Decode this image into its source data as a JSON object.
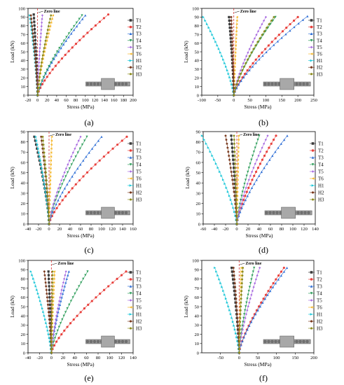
{
  "legend_labels": [
    "T1",
    "T2",
    "T3",
    "T4",
    "T5",
    "T6",
    "H1",
    "H2",
    "H3"
  ],
  "series_colors": [
    "#3a3a3a",
    "#e8403c",
    "#2f6fd6",
    "#2e9e5b",
    "#a86be0",
    "#f5b82e",
    "#1cc7d8",
    "#7a3a1e",
    "#8a8a1a"
  ],
  "zero_line_label": "Zero line",
  "chart_data": [
    {
      "type": "line",
      "caption": "(a)",
      "xlabel": "Stress (MPa)",
      "ylabel": "Load (kN)",
      "xlim": [
        -20,
        200
      ],
      "ylim": [
        0,
        100
      ],
      "xticks": [
        -20,
        0,
        20,
        40,
        60,
        80,
        100,
        120,
        140,
        160,
        180,
        200
      ],
      "yticks": [
        0,
        10,
        20,
        30,
        40,
        50,
        60,
        70,
        80,
        90,
        100
      ],
      "series": [
        {
          "name": "T1",
          "peak_x": -8,
          "peak_y": 93
        },
        {
          "name": "T2",
          "peak_x": 148,
          "peak_y": 93
        },
        {
          "name": "T3",
          "peak_x": 100,
          "peak_y": 92
        },
        {
          "name": "T4",
          "peak_x": 93,
          "peak_y": 92
        },
        {
          "name": "T5",
          "peak_x": 10,
          "peak_y": 92
        },
        {
          "name": "T6",
          "peak_x": 32,
          "peak_y": 92
        },
        {
          "name": "H1",
          "peak_x": -16,
          "peak_y": 92
        },
        {
          "name": "H2",
          "peak_x": -14,
          "peak_y": 92
        },
        {
          "name": "H3",
          "peak_x": 28,
          "peak_y": 92
        }
      ]
    },
    {
      "type": "line",
      "caption": "(b)",
      "xlabel": "Stress (MPa)",
      "ylabel": "Load (kN)",
      "xlim": [
        -100,
        250
      ],
      "ylim": [
        0,
        100
      ],
      "xticks": [
        -100,
        -50,
        0,
        50,
        100,
        150,
        200,
        250
      ],
      "yticks": [
        0,
        10,
        20,
        30,
        40,
        50,
        60,
        70,
        80,
        90,
        100
      ],
      "series": [
        {
          "name": "T1",
          "peak_x": -15,
          "peak_y": 90
        },
        {
          "name": "T2",
          "peak_x": 200,
          "peak_y": 90
        },
        {
          "name": "T3",
          "peak_x": 230,
          "peak_y": 91
        },
        {
          "name": "T4",
          "peak_x": 130,
          "peak_y": 90
        },
        {
          "name": "T5",
          "peak_x": 100,
          "peak_y": 90
        },
        {
          "name": "T6",
          "peak_x": 10,
          "peak_y": 90
        },
        {
          "name": "H1",
          "peak_x": -95,
          "peak_y": 90
        },
        {
          "name": "H2",
          "peak_x": -8,
          "peak_y": 90
        },
        {
          "name": "H3",
          "peak_x": 125,
          "peak_y": 90
        }
      ]
    },
    {
      "type": "line",
      "caption": "(c)",
      "xlabel": "Stress (MPa)",
      "ylabel": "Load (kN)",
      "xlim": [
        -40,
        160
      ],
      "ylim": [
        0,
        90
      ],
      "xticks": [
        -40,
        -20,
        0,
        20,
        40,
        60,
        80,
        100,
        120,
        140,
        160
      ],
      "yticks": [
        0,
        10,
        20,
        30,
        40,
        50,
        60,
        70,
        80,
        90
      ],
      "series": [
        {
          "name": "T1",
          "peak_x": -28,
          "peak_y": 85
        },
        {
          "name": "T2",
          "peak_x": 148,
          "peak_y": 85
        },
        {
          "name": "T3",
          "peak_x": 100,
          "peak_y": 85
        },
        {
          "name": "T4",
          "peak_x": 72,
          "peak_y": 85
        },
        {
          "name": "T5",
          "peak_x": 60,
          "peak_y": 85
        },
        {
          "name": "T6",
          "peak_x": 5,
          "peak_y": 85
        },
        {
          "name": "H1",
          "peak_x": -25,
          "peak_y": 85
        },
        {
          "name": "H2",
          "peak_x": -15,
          "peak_y": 85
        },
        {
          "name": "H3",
          "peak_x": -12,
          "peak_y": 85
        }
      ]
    },
    {
      "type": "line",
      "caption": "(d)",
      "xlabel": "Stress (MPa)",
      "ylabel": "Load (kN)",
      "xlim": [
        -60,
        140
      ],
      "ylim": [
        0,
        90
      ],
      "xticks": [
        -60,
        -40,
        -20,
        0,
        20,
        40,
        60,
        80,
        100,
        120,
        140
      ],
      "yticks": [
        0,
        10,
        20,
        30,
        40,
        50,
        60,
        70,
        80,
        90
      ],
      "series": [
        {
          "name": "T1",
          "peak_x": -10,
          "peak_y": 86
        },
        {
          "name": "T2",
          "peak_x": 70,
          "peak_y": 86
        },
        {
          "name": "T3",
          "peak_x": 90,
          "peak_y": 86
        },
        {
          "name": "T4",
          "peak_x": 40,
          "peak_y": 86
        },
        {
          "name": "T5",
          "peak_x": 55,
          "peak_y": 86
        },
        {
          "name": "T6",
          "peak_x": 3,
          "peak_y": 86
        },
        {
          "name": "H1",
          "peak_x": -62,
          "peak_y": 86
        },
        {
          "name": "H2",
          "peak_x": -20,
          "peak_y": 86
        },
        {
          "name": "H3",
          "peak_x": -5,
          "peak_y": 86
        }
      ]
    },
    {
      "type": "line",
      "caption": "(e)",
      "xlabel": "Stress (MPa)",
      "ylabel": "Load (kN)",
      "xlim": [
        -40,
        140
      ],
      "ylim": [
        0,
        100
      ],
      "xticks": [
        -40,
        -20,
        0,
        20,
        40,
        60,
        80,
        100,
        120,
        140
      ],
      "yticks": [
        0,
        10,
        20,
        30,
        40,
        50,
        60,
        70,
        80,
        90,
        100
      ],
      "series": [
        {
          "name": "T1",
          "peak_x": -5,
          "peak_y": 88
        },
        {
          "name": "T2",
          "peak_x": 128,
          "peak_y": 88
        },
        {
          "name": "T3",
          "peak_x": 30,
          "peak_y": 88
        },
        {
          "name": "T4",
          "peak_x": 62,
          "peak_y": 88
        },
        {
          "name": "T5",
          "peak_x": 25,
          "peak_y": 88
        },
        {
          "name": "T6",
          "peak_x": 5,
          "peak_y": 88
        },
        {
          "name": "H1",
          "peak_x": -35,
          "peak_y": 88
        },
        {
          "name": "H2",
          "peak_x": -12,
          "peak_y": 88
        },
        {
          "name": "H3",
          "peak_x": 2,
          "peak_y": 88
        }
      ]
    },
    {
      "type": "line",
      "caption": "(f)",
      "xlabel": "Stress (MPa)",
      "ylabel": "Load (kN)",
      "xlim": [
        -100,
        200
      ],
      "ylim": [
        0,
        100
      ],
      "xticks": [
        -50,
        0,
        50,
        100,
        150,
        200
      ],
      "yticks": [
        0,
        10,
        20,
        30,
        40,
        50,
        60,
        70,
        80,
        90,
        100
      ],
      "series": [
        {
          "name": "T1",
          "peak_x": -20,
          "peak_y": 92
        },
        {
          "name": "T2",
          "peak_x": 120,
          "peak_y": 92
        },
        {
          "name": "T3",
          "peak_x": 128,
          "peak_y": 92
        },
        {
          "name": "T4",
          "peak_x": 40,
          "peak_y": 92
        },
        {
          "name": "T5",
          "peak_x": 55,
          "peak_y": 92
        },
        {
          "name": "T6",
          "peak_x": 5,
          "peak_y": 92
        },
        {
          "name": "H1",
          "peak_x": -65,
          "peak_y": 92
        },
        {
          "name": "H2",
          "peak_x": -15,
          "peak_y": 92
        },
        {
          "name": "H3",
          "peak_x": 10,
          "peak_y": 92
        }
      ]
    }
  ]
}
